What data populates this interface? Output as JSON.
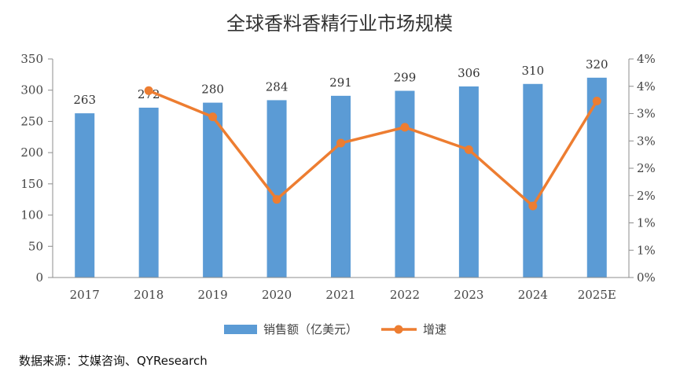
{
  "chart_data": {
    "type": "bar",
    "title": "全球香料香精行业市场规模",
    "categories": [
      "2017",
      "2018",
      "2019",
      "2020",
      "2021",
      "2022",
      "2023",
      "2024",
      "2025E"
    ],
    "series": [
      {
        "name": "销售额（亿美元）",
        "type": "bar",
        "axis": "left",
        "values": [
          263,
          272,
          280,
          284,
          291,
          299,
          306,
          310,
          320
        ],
        "data_labels": [
          "263",
          "272",
          "280",
          "284",
          "291",
          "299",
          "306",
          "310",
          "320"
        ],
        "color": "#5B9BD5"
      },
      {
        "name": "增速",
        "type": "line",
        "axis": "right",
        "values": [
          null,
          3.42,
          2.94,
          1.43,
          2.46,
          2.75,
          2.34,
          1.31,
          3.23
        ],
        "color": "#ED7D31"
      }
    ],
    "y_left": {
      "min": 0,
      "max": 350,
      "step": 50,
      "tick_labels": [
        "0",
        "50",
        "100",
        "150",
        "200",
        "250",
        "300",
        "350"
      ]
    },
    "y_right": {
      "min": 0,
      "max": 4,
      "step": 0.5,
      "tick_labels": [
        "0%",
        "1%",
        "1%",
        "2%",
        "2%",
        "3%",
        "3%",
        "4%",
        "4%"
      ]
    },
    "grid": false,
    "legend_position": "bottom"
  },
  "source_note": "数据来源：艾媒咨询、QYResearch"
}
